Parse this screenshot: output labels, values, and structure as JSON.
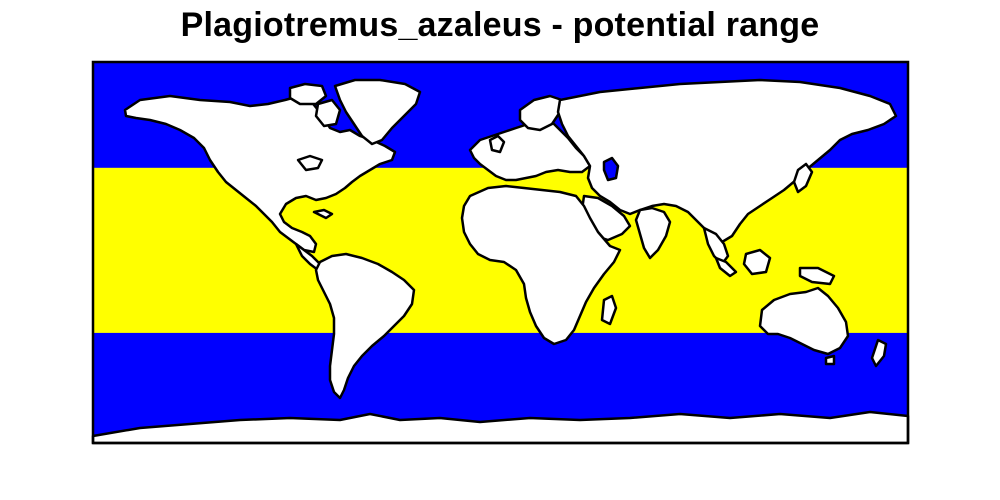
{
  "title": "Plagiotremus_azaleus - potential range",
  "legend_colors": {
    "ocean_unsuitable": "#0000ff",
    "potential_range": "#ffff00",
    "land": "#ffffff",
    "coastline": "#000000"
  },
  "range_band_latitudes": [
    -38,
    40
  ],
  "projection": "equirectangular"
}
